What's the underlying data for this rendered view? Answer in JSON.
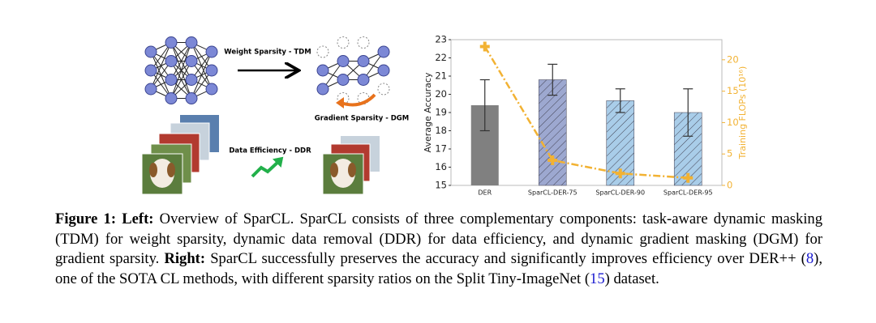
{
  "diagram": {
    "weight_label": "Weight Sparsity - TDM",
    "gradient_label": "Gradient Sparsity - DGM",
    "data_label": "Data Efficiency - DDR"
  },
  "chart_data": {
    "type": "bar",
    "categories": [
      "DER",
      "SparCL-DER-75",
      "SparCL-DER-90",
      "SparCL-DER-95"
    ],
    "values": [
      19.4,
      20.8,
      19.65,
      19.0
    ],
    "errors": [
      1.4,
      0.85,
      0.65,
      1.3
    ],
    "bar_colors": [
      "#808080",
      "#9da8d0",
      "#a9cde9",
      "#a9cde9"
    ],
    "hatched": [
      false,
      true,
      true,
      true
    ],
    "line_values": [
      22.1,
      4.0,
      1.9,
      1.2
    ],
    "line_color": "#f2b233",
    "ylabel": "Average Accuracy",
    "y2label": "Training FLOPs (10¹⁶)",
    "ylim": [
      15,
      23
    ],
    "yticks": [
      15,
      16,
      17,
      18,
      19,
      20,
      21,
      22,
      23
    ],
    "y2lim": [
      0,
      23.2
    ],
    "y2ticks": [
      0,
      5,
      10,
      15,
      20
    ]
  },
  "caption": {
    "label": "Figure 1:",
    "left_heading": "Left:",
    "left_text": "Overview of SparCL. SparCL consists of three complementary components: task-aware dynamic masking (TDM) for weight sparsity, dynamic data removal (DDR) for data efficiency, and dynamic gradient masking (DGM) for gradient sparsity.",
    "right_heading": "Right:",
    "right_text_1": "SparCL successfully preserves the accuracy and significantly improves efficiency over DER++ (",
    "ref_1": "8",
    "right_text_2": "), one of the SOTA CL methods, with different sparsity ratios on the Split Tiny-ImageNet (",
    "ref_2": "15",
    "right_text_3": ") dataset."
  }
}
